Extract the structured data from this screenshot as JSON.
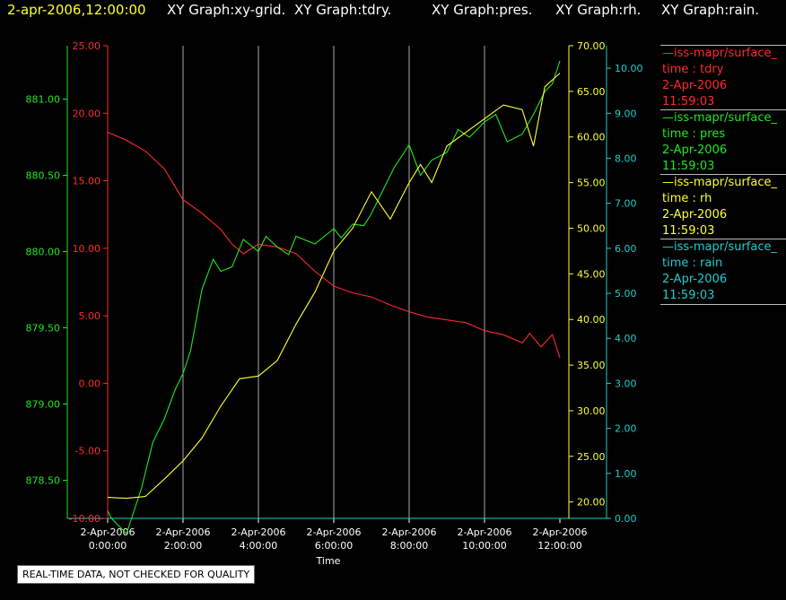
{
  "header": {
    "timestamp": "2-apr-2006,12:00:00",
    "graphs": [
      "XY Graph:xy-grid.",
      "XY Graph:tdry.",
      "XY Graph:pres.",
      "XY Graph:rh.",
      "XY Graph:rain."
    ]
  },
  "legend": [
    {
      "name": "—iss-mapr/surface_",
      "field": "time : tdry",
      "date": "2-Apr-2006",
      "time": "11:59:03",
      "color": "#ff2a2a"
    },
    {
      "name": "—iss-mapr/surface_",
      "field": "time : pres",
      "date": "2-Apr-2006",
      "time": "11:59:03",
      "color": "#22e622"
    },
    {
      "name": "—iss-mapr/surface_",
      "field": "time : rh",
      "date": "2-Apr-2006",
      "time": "11:59:03",
      "color": "#ffff33"
    },
    {
      "name": "—iss-mapr/surface_",
      "field": "time : rain",
      "date": "2-Apr-2006",
      "time": "11:59:03",
      "color": "#22cccc"
    }
  ],
  "notice": "REAL-TIME DATA, NOT CHECKED FOR QUALITY",
  "chart_data": {
    "type": "line",
    "xlabel": "Time",
    "x_ticks": [
      {
        "date": "2-Apr-2006",
        "time": "0:00:00",
        "h": 0
      },
      {
        "date": "2-Apr-2006",
        "time": "2:00:00",
        "h": 2
      },
      {
        "date": "2-Apr-2006",
        "time": "4:00:00",
        "h": 4
      },
      {
        "date": "2-Apr-2006",
        "time": "6:00:00",
        "h": 6
      },
      {
        "date": "2-Apr-2006",
        "time": "8:00:00",
        "h": 8
      },
      {
        "date": "2-Apr-2006",
        "time": "10:00:00",
        "h": 10
      },
      {
        "date": "2-Apr-2006",
        "time": "12:00:00",
        "h": 12
      }
    ],
    "xlim": [
      0,
      12
    ],
    "grid": true,
    "axes": {
      "pres": {
        "color": "#22e622",
        "range": [
          878.25,
          881.35
        ],
        "ticks": [
          "878.50",
          "879.00",
          "879.50",
          "880.00",
          "880.50",
          "881.00"
        ]
      },
      "tdry": {
        "color": "#ff2a2a",
        "range": [
          -10,
          25
        ],
        "ticks": [
          "-10.00",
          "-5.00",
          "0.00",
          "5.00",
          "10.00",
          "15.00",
          "20.00",
          "25.00"
        ]
      },
      "rh": {
        "color": "#ffff33",
        "range": [
          18.2,
          70
        ],
        "ticks": [
          "20.00",
          "25.00",
          "30.00",
          "35.00",
          "40.00",
          "45.00",
          "50.00",
          "55.00",
          "60.00",
          "65.00",
          "70.00"
        ]
      },
      "rain": {
        "color": "#22cccc",
        "range": [
          0,
          10.5
        ],
        "ticks": [
          "0.00",
          "1.00",
          "2.00",
          "3.00",
          "4.00",
          "5.00",
          "6.00",
          "7.00",
          "8.00",
          "9.00",
          "10.00"
        ]
      }
    },
    "series": [
      {
        "key": "tdry",
        "color": "#ff2a2a",
        "x": [
          0,
          0.5,
          1,
          1.5,
          2,
          2.5,
          3,
          3.3,
          3.6,
          4,
          4.5,
          5,
          5.5,
          6,
          6.5,
          7,
          7.5,
          8,
          8.5,
          9,
          9.5,
          10,
          10.5,
          11,
          11.2,
          11.5,
          11.8,
          12
        ],
        "y": [
          18.6,
          18,
          17.2,
          15.9,
          13.6,
          12.6,
          11.4,
          10.3,
          9.6,
          10.3,
          10.1,
          9.6,
          8.3,
          7.2,
          6.7,
          6.4,
          5.8,
          5.3,
          4.9,
          4.7,
          4.5,
          3.9,
          3.6,
          3.0,
          3.7,
          2.7,
          3.6,
          1.9
        ]
      },
      {
        "key": "pres",
        "color": "#22e622",
        "x": [
          0,
          0.1,
          0.3,
          0.5,
          0.7,
          0.9,
          1.2,
          1.5,
          1.8,
          2,
          2.2,
          2.5,
          2.8,
          3,
          3.3,
          3.6,
          4,
          4.2,
          4.5,
          4.8,
          5,
          5.5,
          6,
          6.2,
          6.5,
          6.8,
          7,
          7.3,
          7.6,
          8,
          8.3,
          8.6,
          9,
          9.3,
          9.6,
          10,
          10.3,
          10.6,
          11,
          11.3,
          11.6,
          11.8,
          12
        ],
        "y": [
          878.3,
          878.25,
          878.2,
          878.15,
          878.3,
          878.45,
          878.75,
          878.9,
          879.1,
          879.2,
          879.35,
          879.75,
          879.95,
          879.87,
          879.9,
          880.08,
          880.0,
          880.1,
          880.03,
          879.98,
          880.1,
          880.05,
          880.15,
          880.09,
          880.18,
          880.17,
          880.25,
          880.4,
          880.55,
          880.7,
          880.5,
          880.6,
          880.65,
          880.8,
          880.75,
          880.85,
          880.9,
          880.72,
          880.77,
          880.9,
          881.05,
          881.1,
          881.25
        ]
      },
      {
        "key": "rh",
        "color": "#ffff33",
        "x": [
          0,
          0.5,
          1,
          1.5,
          2,
          2.5,
          3,
          3.5,
          4,
          4.5,
          5,
          5.5,
          6,
          6.5,
          7,
          7.5,
          8,
          8.3,
          8.6,
          9,
          9.5,
          10,
          10.5,
          11,
          11.3,
          11.6,
          12
        ],
        "y": [
          20.5,
          20.4,
          20.6,
          22.5,
          24.5,
          27.0,
          30.5,
          33.5,
          33.8,
          35.5,
          39.5,
          43.0,
          47.5,
          50.0,
          54.0,
          51.0,
          55.0,
          57.0,
          55.0,
          59.0,
          60.5,
          62.0,
          63.5,
          63.0,
          59.0,
          65.5,
          67.0
        ]
      },
      {
        "key": "rain",
        "color": "#22cccc",
        "x": [
          0,
          12
        ],
        "y": [
          0,
          0
        ]
      }
    ]
  }
}
